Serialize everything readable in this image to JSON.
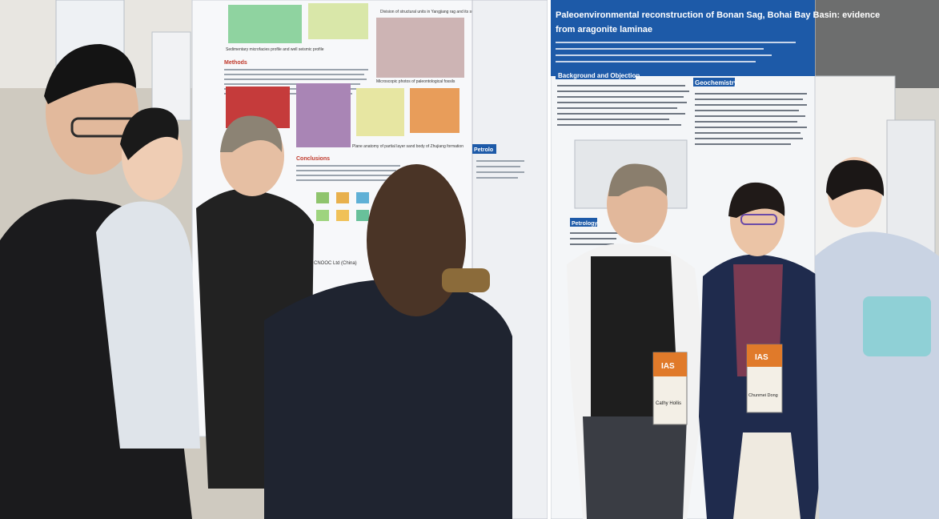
{
  "left_photo": {
    "poster": {
      "caption_top_a": "Sedimentary microfacies profile and well seismic profile",
      "caption_top_b": "Division of structural units in Yangjiang rag and its surrounding areas",
      "methods_heading": "Methods",
      "microscopic_caption": "Microscopic photos of paleontological fossils",
      "conclusions_heading": "Conclusions",
      "plane_caption": "Plane anatomy of partial layer sand body of Zhujiang formation",
      "footer_org": "CNOOC Ltd (China)",
      "side_heading": "Petrolo"
    }
  },
  "right_photo": {
    "poster": {
      "title_line1": "Paleoenvironmental reconstruction of Bonan Sag, Bohai Bay Basin: evidence",
      "title_line2": "from aragonite laminae",
      "section_background": "Background and Objection",
      "section_geochemistry": "Geochemistry",
      "section_petrology": "Petrology"
    },
    "badges": {
      "left_badge_name": "Cathy Hollis",
      "center_badge_name": "Chunmei Dong",
      "badge_logo": "IAS"
    }
  },
  "colors": {
    "poster_blue": "#1d5aa8",
    "poster_heading_red": "#c0392b",
    "badge_orange": "#e07a2a"
  }
}
